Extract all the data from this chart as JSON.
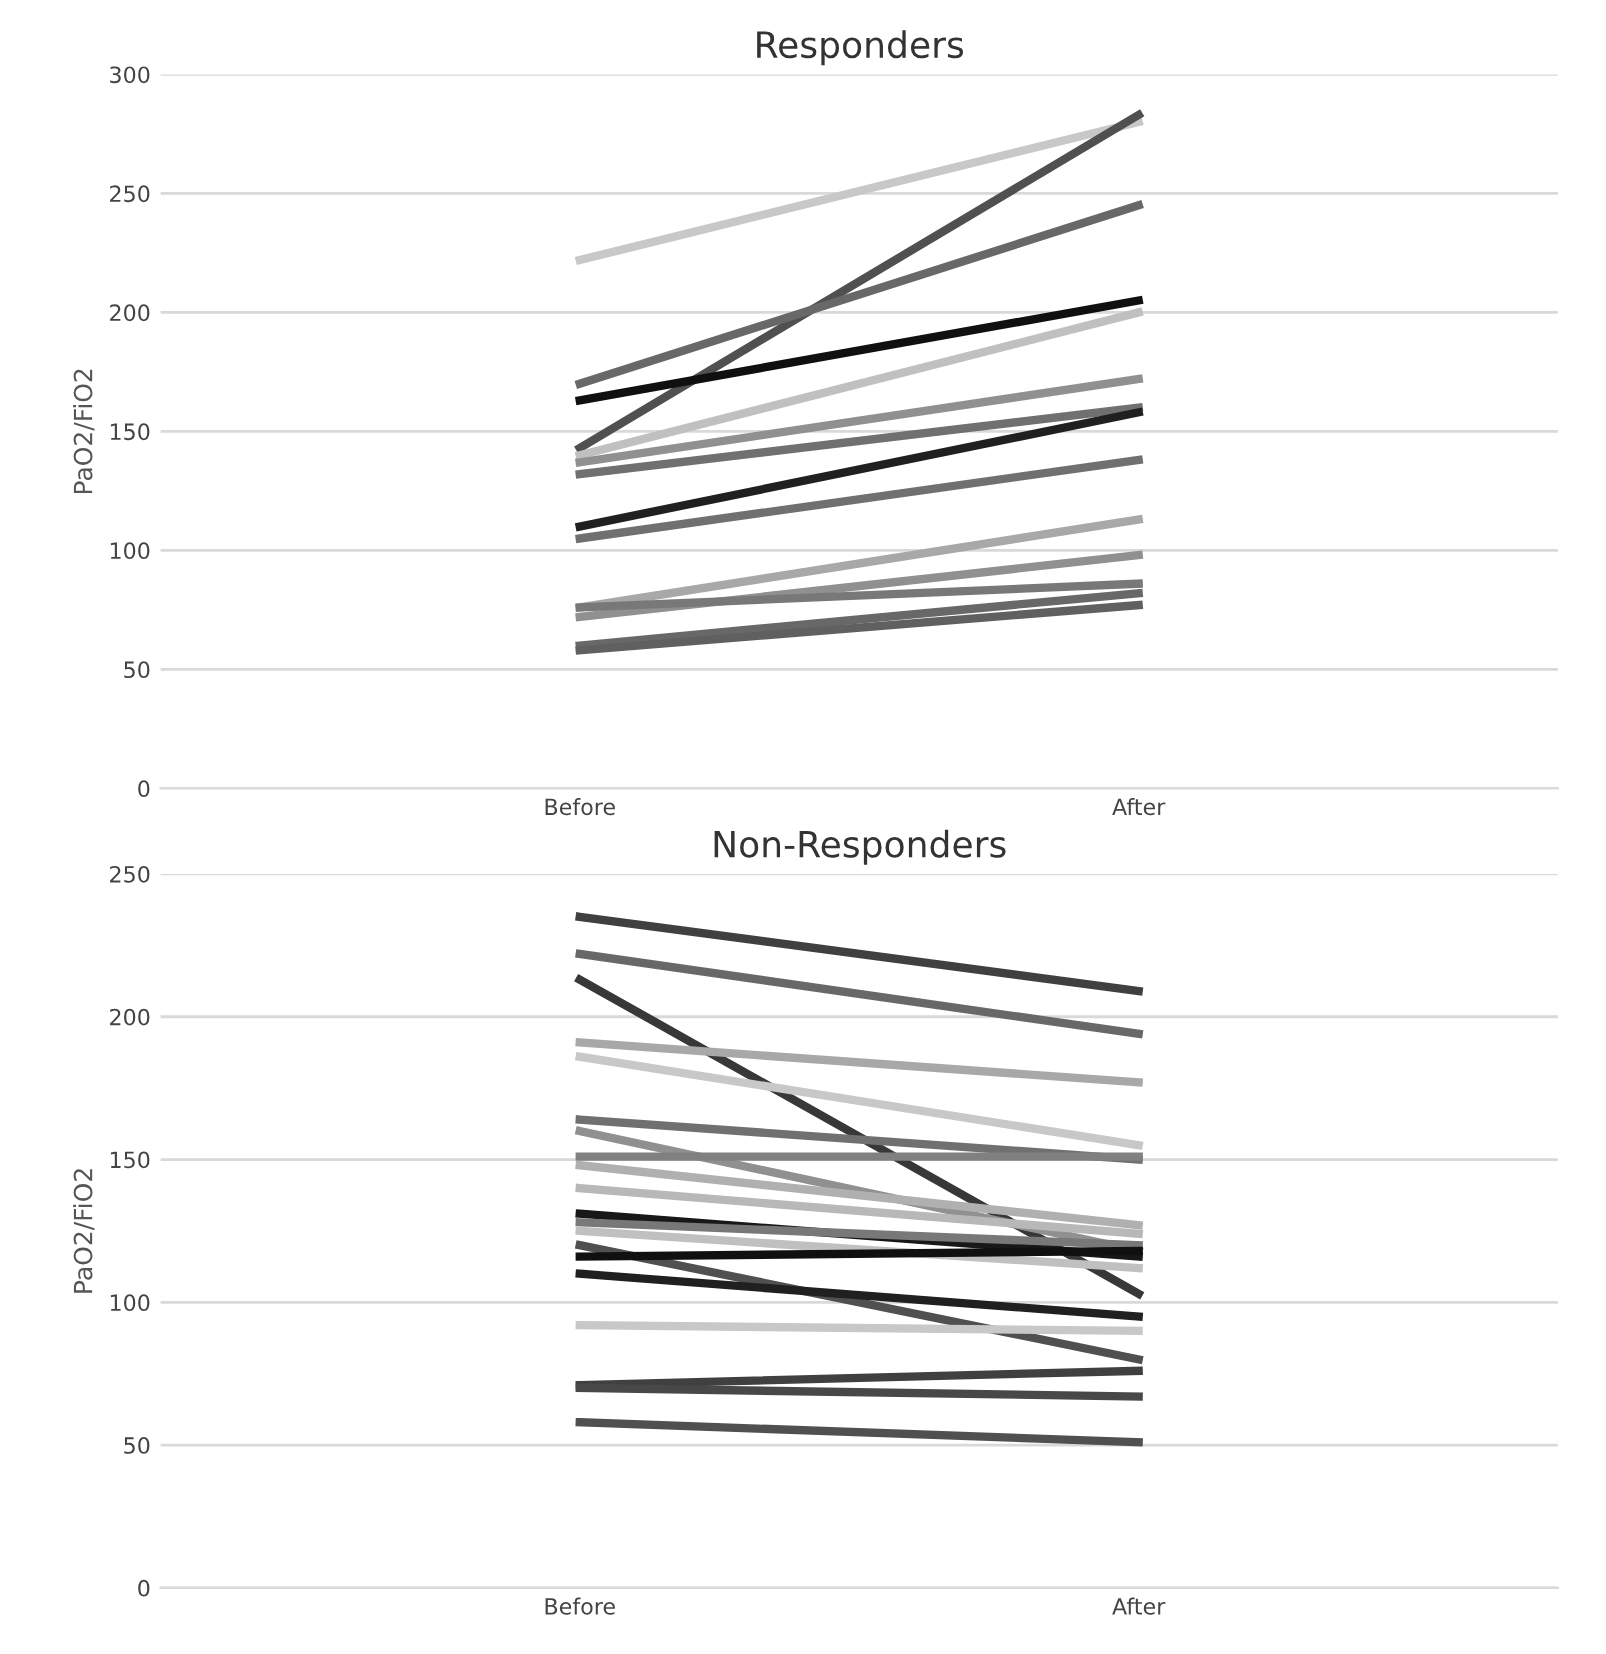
{
  "chart_data": [
    {
      "type": "line",
      "title": "Responders",
      "ylabel": "PaO2/FiO2",
      "categories": [
        "Before",
        "After"
      ],
      "ylim": [
        0,
        300
      ],
      "yticks": [
        0,
        50,
        100,
        150,
        200,
        250,
        300
      ],
      "grid": "y",
      "marker": "none",
      "line_style": "solid",
      "series": [
        {
          "color": "#c8c8c8",
          "values": [
            222,
            280
          ]
        },
        {
          "color": "#505050",
          "values": [
            143,
            283
          ]
        },
        {
          "color": "#686868",
          "values": [
            170,
            245
          ]
        },
        {
          "color": "#101010",
          "values": [
            163,
            205
          ]
        },
        {
          "color": "#c0c0c0",
          "values": [
            140,
            200
          ]
        },
        {
          "color": "#909090",
          "values": [
            137,
            172
          ]
        },
        {
          "color": "#707070",
          "values": [
            132,
            160
          ]
        },
        {
          "color": "#202020",
          "values": [
            110,
            158
          ]
        },
        {
          "color": "#707070",
          "values": [
            105,
            138
          ]
        },
        {
          "color": "#a8a8a8",
          "values": [
            76,
            113
          ]
        },
        {
          "color": "#909090",
          "values": [
            72,
            98
          ]
        },
        {
          "color": "#787878",
          "values": [
            76,
            86
          ]
        },
        {
          "color": "#686868",
          "values": [
            60,
            82
          ]
        },
        {
          "color": "#606060",
          "values": [
            58,
            77
          ]
        }
      ]
    },
    {
      "type": "line",
      "title": "Non-Responders",
      "ylabel": "PaO2/FiO2",
      "categories": [
        "Before",
        "After"
      ],
      "ylim": [
        0,
        250
      ],
      "yticks": [
        0,
        50,
        100,
        150,
        200,
        250
      ],
      "grid": "y",
      "marker": "none",
      "line_style": "solid",
      "series": [
        {
          "color": "#404040",
          "values": [
            235,
            209
          ]
        },
        {
          "color": "#686868",
          "values": [
            222,
            194
          ]
        },
        {
          "color": "#383838",
          "values": [
            213,
            103
          ]
        },
        {
          "color": "#a8a8a8",
          "values": [
            191,
            177
          ]
        },
        {
          "color": "#c8c8c8",
          "values": [
            186,
            155
          ]
        },
        {
          "color": "#707070",
          "values": [
            164,
            150
          ]
        },
        {
          "color": "#909090",
          "values": [
            160,
            118
          ]
        },
        {
          "color": "#808080",
          "values": [
            151,
            151
          ]
        },
        {
          "color": "#b0b0b0",
          "values": [
            148,
            127
          ]
        },
        {
          "color": "#b8b8b8",
          "values": [
            140,
            124
          ]
        },
        {
          "color": "#181818",
          "values": [
            131,
            116
          ]
        },
        {
          "color": "#787878",
          "values": [
            128,
            120
          ]
        },
        {
          "color": "#c0c0c0",
          "values": [
            125,
            112
          ]
        },
        {
          "color": "#505050",
          "values": [
            120,
            80
          ]
        },
        {
          "color": "#101010",
          "values": [
            116,
            118
          ]
        },
        {
          "color": "#202020",
          "values": [
            110,
            95
          ]
        },
        {
          "color": "#c8c8c8",
          "values": [
            92,
            90
          ]
        },
        {
          "color": "#404040",
          "values": [
            71,
            76
          ]
        },
        {
          "color": "#484848",
          "values": [
            70,
            67
          ]
        },
        {
          "color": "#505050",
          "values": [
            58,
            51
          ]
        }
      ]
    }
  ]
}
